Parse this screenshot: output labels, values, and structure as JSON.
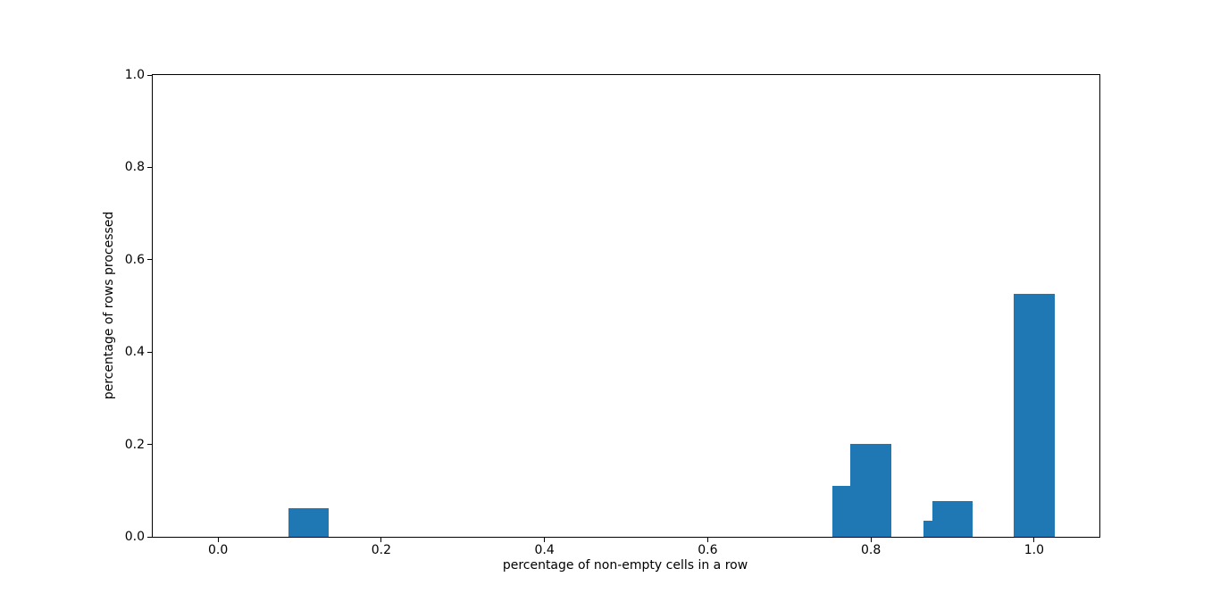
{
  "chart_data": {
    "type": "bar",
    "title": "",
    "xlabel": "percentage of non-empty cells in a row",
    "ylabel": "percentage of rows processed",
    "x": [
      0.1111,
      0.7778,
      0.8,
      0.8889,
      0.9,
      1.0
    ],
    "values": [
      0.062,
      0.11,
      0.202,
      0.034,
      0.078,
      0.526
    ],
    "bar_width": 0.05,
    "bar_color": "#1f77b4",
    "xlim": [
      -0.08,
      1.08
    ],
    "ylim": [
      0.0,
      1.0
    ],
    "x_ticks": [
      0.0,
      0.2,
      0.4,
      0.6,
      0.8,
      1.0
    ],
    "x_tick_labels": [
      "0.0",
      "0.2",
      "0.4",
      "0.6",
      "0.8",
      "1.0"
    ],
    "y_ticks": [
      0.0,
      0.2,
      0.4,
      0.6,
      0.8,
      1.0
    ],
    "y_tick_labels": [
      "0.0",
      "0.2",
      "0.4",
      "0.6",
      "0.8",
      "1.0"
    ],
    "grid": false,
    "legend": null,
    "background_color": "#ffffff",
    "spine_color": "#000000"
  }
}
